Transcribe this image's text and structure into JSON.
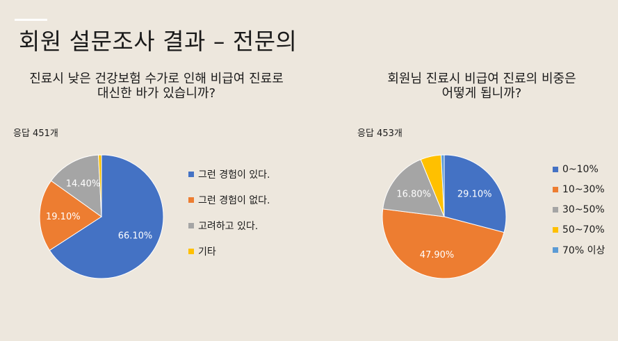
{
  "slide": {
    "title": "회원 설문조사 결과 – 전문의"
  },
  "colors": {
    "blue": "#4472c4",
    "orange": "#ed7d31",
    "gray": "#a5a5a5",
    "yellow": "#ffc000",
    "lightblue": "#5b9bd5"
  },
  "chart_data": [
    {
      "type": "pie",
      "title": "진료시 낮은 건강보험 수가로 인해 비급여 진료로\n대신한 바가 있습니까?",
      "title_lines": [
        "진료시 낮은 건강보험 수가로 인해 비급여 진료로",
        "대신한 바가 있습니까?"
      ],
      "respondents_label": "응답 451개",
      "categories": [
        "그런 경험이 있다.",
        "그런 경험이 없다.",
        "고려하고 있다.",
        "기타"
      ],
      "values": [
        66.1,
        19.1,
        14.4,
        0.8
      ],
      "data_labels": [
        "66.10%",
        "19.10%",
        "14.40%",
        ""
      ],
      "colors": [
        "#4472c4",
        "#ed7d31",
        "#a5a5a5",
        "#ffc000"
      ],
      "legend_position": "right"
    },
    {
      "type": "pie",
      "title": "회원님 진료시 비급여 진료의 비중은\n어떻게 됩니까?",
      "title_lines": [
        "회원님 진료시 비급여 진료의 비중은",
        "어떻게 됩니까?"
      ],
      "respondents_label": "응답 453개",
      "categories": [
        "0~10%",
        "10~30%",
        "30~50%",
        "50~70%",
        "70% 이상"
      ],
      "values": [
        29.1,
        47.9,
        16.8,
        5.4,
        0.8
      ],
      "data_labels": [
        "29.10%",
        "47.90%",
        "16.80%",
        "",
        ""
      ],
      "colors": [
        "#4472c4",
        "#ed7d31",
        "#a5a5a5",
        "#ffc000",
        "#5b9bd5"
      ],
      "legend_position": "right"
    }
  ]
}
